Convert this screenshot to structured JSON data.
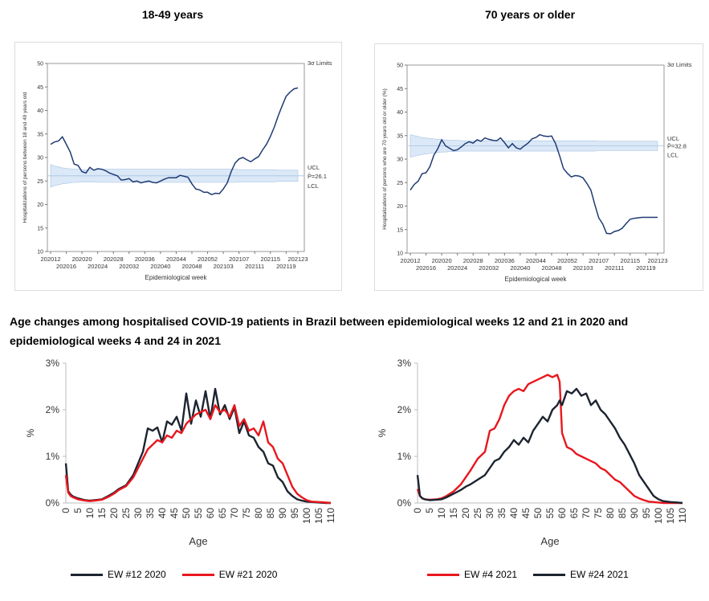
{
  "top_titles": [
    "18-49 years",
    "70 years or older"
  ],
  "caption": "Age changes among hospitalised COVID-19 patients in Brazil between epidemiological weeks 12 and 21 in 2020 and epidemiological weeks 4 and 24 in 2021",
  "colors": {
    "navy": "#1f3b73",
    "band": "#dbe8f7",
    "band_edge": "#a9c3e3",
    "red": "#e8171e",
    "dark": "#1d2430"
  },
  "chart_data": [
    {
      "type": "line",
      "title": "18-49 years",
      "xlabel": "Epidemiological week",
      "ylabel": "Hospitalizations of persons between 18 and 49 years old",
      "ylim": [
        10,
        50
      ],
      "yticks": [
        10,
        15,
        20,
        25,
        30,
        35,
        40,
        45,
        50
      ],
      "xticks_top": [
        "202012",
        "202020",
        "202028",
        "202036",
        "202044",
        "202052",
        "202107",
        "202115",
        "202123"
      ],
      "xticks_bottom": [
        "202016",
        "202024",
        "202032",
        "202040",
        "202048",
        "202103",
        "202111",
        "202119"
      ],
      "limits_label": "3σ Limits",
      "control_labels": [
        "UCL",
        "P̄=26.1",
        "LCL"
      ],
      "center": 26.1,
      "x": [
        0,
        1,
        2,
        3,
        4,
        5,
        6,
        7,
        8,
        9,
        10,
        11,
        12,
        13,
        14,
        15,
        16,
        17,
        18,
        19,
        20,
        21,
        22,
        23,
        24,
        25,
        26,
        27,
        28,
        29,
        30,
        31,
        32,
        33,
        34,
        35,
        36,
        37,
        38,
        39,
        40,
        41,
        42,
        43,
        44,
        45,
        46,
        47,
        48,
        49,
        50,
        51,
        52,
        53,
        54,
        55,
        56,
        57,
        58,
        59,
        60,
        61,
        62,
        63
      ],
      "values": [
        32.8,
        33.3,
        33.5,
        34.4,
        32.8,
        31.2,
        28.6,
        28.3,
        27.0,
        26.7,
        27.9,
        27.3,
        27.6,
        27.5,
        27.2,
        26.7,
        26.4,
        26.1,
        25.2,
        25.3,
        25.5,
        24.8,
        25.0,
        24.6,
        24.8,
        25.0,
        24.7,
        24.6,
        25.0,
        25.4,
        25.7,
        25.7,
        25.7,
        26.2,
        26.0,
        25.8,
        24.4,
        23.3,
        23.1,
        22.6,
        22.6,
        22.1,
        22.4,
        22.3,
        23.3,
        24.6,
        27.0,
        28.8,
        29.7,
        30.0,
        29.5,
        29.1,
        29.7,
        30.2,
        31.6,
        32.8,
        34.5,
        36.5,
        38.9,
        41.0,
        43.0,
        43.9,
        44.6,
        44.8
      ],
      "band_upper": [
        28.5,
        28.2,
        28.0,
        27.8,
        27.7,
        27.6,
        27.5,
        27.5,
        27.4,
        27.4,
        27.4,
        27.4,
        27.5,
        27.5,
        27.5,
        27.5,
        27.5,
        27.5,
        27.5,
        27.5,
        27.5,
        27.5,
        27.5,
        27.5,
        27.5,
        27.5,
        27.5,
        27.5,
        27.5,
        27.5,
        27.5,
        27.5,
        27.5,
        27.5,
        27.5,
        27.5,
        27.5,
        27.5,
        27.5,
        27.5,
        27.5,
        27.5,
        27.5,
        27.5,
        27.5,
        27.5,
        27.5,
        27.5,
        27.4,
        27.4,
        27.4,
        27.4,
        27.4,
        27.4,
        27.4,
        27.4,
        27.4,
        27.4,
        27.3,
        27.3,
        27.3,
        27.3,
        27.3,
        27.3
      ],
      "band_lower": [
        23.7,
        24.0,
        24.2,
        24.4,
        24.5,
        24.6,
        24.7,
        24.7,
        24.8,
        24.8,
        24.8,
        24.8,
        24.7,
        24.7,
        24.7,
        24.7,
        24.7,
        24.7,
        24.7,
        24.7,
        24.7,
        24.7,
        24.7,
        24.7,
        24.7,
        24.7,
        24.7,
        24.7,
        24.7,
        24.7,
        24.7,
        24.7,
        24.7,
        24.7,
        24.7,
        24.7,
        24.7,
        24.7,
        24.7,
        24.7,
        24.7,
        24.7,
        24.7,
        24.7,
        24.7,
        24.7,
        24.7,
        24.7,
        24.8,
        24.8,
        24.8,
        24.8,
        24.8,
        24.8,
        24.8,
        24.8,
        24.8,
        24.8,
        24.9,
        24.9,
        24.9,
        24.9,
        24.9,
        24.9
      ]
    },
    {
      "type": "line",
      "title": "70 years or older",
      "xlabel": "Epidemiological week",
      "ylabel": "Hospitalizations of persons who are 70 years old or older (%)",
      "ylim": [
        10,
        50
      ],
      "yticks": [
        10,
        15,
        20,
        25,
        30,
        35,
        40,
        45,
        50
      ],
      "xticks_top": [
        "202012",
        "202020",
        "202028",
        "202036",
        "202044",
        "202052",
        "202107",
        "202115",
        "202123"
      ],
      "xticks_bottom": [
        "202016",
        "202024",
        "202032",
        "202040",
        "202048",
        "202103",
        "202111",
        "202119"
      ],
      "limits_label": "3σ Limits",
      "control_labels": [
        "UCL",
        "P̄=32.8",
        "LCL"
      ],
      "center": 32.8,
      "x": [
        0,
        1,
        2,
        3,
        4,
        5,
        6,
        7,
        8,
        9,
        10,
        11,
        12,
        13,
        14,
        15,
        16,
        17,
        18,
        19,
        20,
        21,
        22,
        23,
        24,
        25,
        26,
        27,
        28,
        29,
        30,
        31,
        32,
        33,
        34,
        35,
        36,
        37,
        38,
        39,
        40,
        41,
        42,
        43,
        44,
        45,
        46,
        47,
        48,
        49,
        50,
        51,
        52,
        53,
        54,
        55,
        56,
        57,
        58,
        59,
        60,
        61,
        62,
        63
      ],
      "values": [
        23.4,
        24.6,
        25.3,
        26.9,
        27.1,
        28.4,
        30.8,
        32.2,
        34.1,
        32.8,
        32.3,
        31.8,
        32.0,
        32.6,
        33.3,
        33.7,
        33.4,
        34.1,
        33.8,
        34.5,
        34.2,
        34.0,
        33.9,
        34.5,
        33.5,
        32.4,
        33.3,
        32.4,
        32.1,
        32.8,
        33.4,
        34.3,
        34.6,
        35.2,
        34.9,
        34.8,
        34.9,
        33.3,
        30.8,
        28.0,
        27.0,
        26.2,
        26.5,
        26.4,
        26.0,
        24.8,
        23.4,
        20.3,
        17.5,
        16.2,
        14.2,
        14.1,
        14.6,
        14.8,
        15.3,
        16.3,
        17.2,
        17.4,
        17.5,
        17.6,
        17.6,
        17.6,
        17.6,
        17.6
      ],
      "band_upper": [
        35.2,
        35.0,
        34.8,
        34.6,
        34.5,
        34.4,
        34.3,
        34.2,
        34.1,
        34.1,
        34.0,
        34.0,
        34.0,
        33.9,
        33.9,
        33.9,
        33.9,
        33.9,
        33.9,
        33.9,
        33.9,
        33.9,
        33.9,
        33.9,
        33.9,
        33.9,
        33.9,
        33.9,
        33.9,
        33.9,
        33.9,
        33.9,
        33.9,
        33.9,
        33.9,
        33.9,
        33.9,
        33.9,
        33.9,
        33.9,
        33.9,
        33.9,
        33.9,
        33.9,
        33.9,
        33.9,
        33.9,
        33.9,
        33.8,
        33.8,
        33.8,
        33.8,
        33.8,
        33.8,
        33.8,
        33.8,
        33.8,
        33.8,
        33.8,
        33.8,
        33.8,
        33.8,
        33.8,
        33.8
      ],
      "band_lower": [
        30.4,
        30.6,
        30.8,
        31.0,
        31.1,
        31.2,
        31.3,
        31.4,
        31.5,
        31.5,
        31.6,
        31.6,
        31.6,
        31.7,
        31.7,
        31.7,
        31.7,
        31.7,
        31.7,
        31.7,
        31.7,
        31.7,
        31.7,
        31.7,
        31.7,
        31.7,
        31.7,
        31.7,
        31.7,
        31.7,
        31.7,
        31.7,
        31.7,
        31.7,
        31.7,
        31.7,
        31.7,
        31.7,
        31.7,
        31.7,
        31.7,
        31.7,
        31.7,
        31.7,
        31.7,
        31.7,
        31.7,
        31.7,
        31.8,
        31.8,
        31.8,
        31.8,
        31.8,
        31.8,
        31.8,
        31.8,
        31.8,
        31.8,
        31.8,
        31.8,
        31.8,
        31.8,
        31.8,
        31.8
      ]
    },
    {
      "type": "line",
      "xlabel": "Age",
      "ylabel": "%",
      "ylim": [
        0,
        3
      ],
      "yticks": [
        "0%",
        "1%",
        "2%",
        "3%"
      ],
      "xticks": [
        "0",
        "5",
        "10",
        "15",
        "20",
        "25",
        "30",
        "35",
        "40",
        "45",
        "50",
        "55",
        "60",
        "65",
        "70",
        "75",
        "80",
        "85",
        "90",
        "95",
        "100",
        "105",
        "110"
      ],
      "x": [
        0,
        1,
        2,
        3,
        5,
        8,
        10,
        12,
        15,
        18,
        20,
        22,
        25,
        28,
        30,
        32,
        34,
        36,
        38,
        40,
        42,
        44,
        46,
        48,
        50,
        52,
        54,
        56,
        58,
        60,
        62,
        64,
        66,
        68,
        70,
        72,
        74,
        76,
        78,
        80,
        82,
        84,
        86,
        88,
        90,
        92,
        94,
        96,
        98,
        100,
        102,
        105,
        108,
        110
      ],
      "series": [
        {
          "name": "EW #12 2020",
          "color": "#1d2430",
          "values": [
            0.85,
            0.25,
            0.18,
            0.14,
            0.1,
            0.06,
            0.05,
            0.06,
            0.08,
            0.16,
            0.22,
            0.3,
            0.38,
            0.6,
            0.85,
            1.1,
            1.6,
            1.55,
            1.62,
            1.3,
            1.75,
            1.68,
            1.85,
            1.55,
            2.35,
            1.7,
            2.2,
            1.85,
            2.4,
            1.8,
            2.45,
            1.9,
            2.1,
            1.8,
            2.05,
            1.5,
            1.75,
            1.45,
            1.4,
            1.2,
            1.1,
            0.85,
            0.8,
            0.55,
            0.45,
            0.25,
            0.15,
            0.08,
            0.05,
            0.03,
            0.02,
            0.01,
            0.0,
            0.0
          ]
        },
        {
          "name": "EW #21 2020",
          "color": "#e8171e",
          "values": [
            0.6,
            0.22,
            0.15,
            0.12,
            0.08,
            0.05,
            0.04,
            0.05,
            0.07,
            0.14,
            0.2,
            0.28,
            0.36,
            0.55,
            0.75,
            0.95,
            1.15,
            1.25,
            1.35,
            1.3,
            1.45,
            1.4,
            1.55,
            1.5,
            1.7,
            1.8,
            1.9,
            1.95,
            2.0,
            1.8,
            2.1,
            1.95,
            2.0,
            1.85,
            2.1,
            1.65,
            1.8,
            1.55,
            1.6,
            1.45,
            1.75,
            1.3,
            1.2,
            0.95,
            0.85,
            0.6,
            0.35,
            0.2,
            0.12,
            0.06,
            0.03,
            0.02,
            0.01,
            0.0
          ]
        }
      ]
    },
    {
      "type": "line",
      "xlabel": "Age",
      "ylabel": "%",
      "ylim": [
        0,
        3
      ],
      "yticks": [
        "0%",
        "1%",
        "2%",
        "3%"
      ],
      "xticks": [
        "0",
        "5",
        "10",
        "15",
        "20",
        "25",
        "30",
        "35",
        "40",
        "45",
        "50",
        "55",
        "60",
        "65",
        "70",
        "75",
        "80",
        "85",
        "90",
        "95",
        "100",
        "105",
        "110"
      ],
      "x": [
        0,
        1,
        2,
        3,
        5,
        8,
        10,
        12,
        15,
        18,
        20,
        22,
        25,
        28,
        30,
        32,
        34,
        36,
        38,
        40,
        42,
        44,
        46,
        48,
        50,
        52,
        54,
        56,
        58,
        59,
        60,
        62,
        64,
        66,
        68,
        70,
        72,
        74,
        76,
        78,
        80,
        82,
        84,
        86,
        88,
        90,
        92,
        94,
        96,
        98,
        100,
        102,
        105,
        108,
        110
      ],
      "series": [
        {
          "name": "EW #4 2021",
          "color": "#e8171e",
          "values": [
            0.3,
            0.15,
            0.1,
            0.08,
            0.07,
            0.08,
            0.1,
            0.15,
            0.25,
            0.4,
            0.55,
            0.7,
            0.95,
            1.1,
            1.55,
            1.6,
            1.8,
            2.1,
            2.3,
            2.4,
            2.45,
            2.4,
            2.55,
            2.6,
            2.65,
            2.7,
            2.75,
            2.7,
            2.75,
            2.6,
            1.5,
            1.2,
            1.15,
            1.05,
            1.0,
            0.95,
            0.9,
            0.85,
            0.75,
            0.7,
            0.6,
            0.5,
            0.45,
            0.35,
            0.25,
            0.15,
            0.1,
            0.06,
            0.03,
            0.02,
            0.01,
            0.0,
            0.0,
            0.0,
            0.0
          ]
        },
        {
          "name": "EW #24 2021",
          "color": "#1d2430",
          "values": [
            0.6,
            0.15,
            0.1,
            0.08,
            0.06,
            0.07,
            0.08,
            0.12,
            0.2,
            0.28,
            0.35,
            0.4,
            0.5,
            0.6,
            0.75,
            0.9,
            0.95,
            1.1,
            1.2,
            1.35,
            1.25,
            1.4,
            1.3,
            1.55,
            1.7,
            1.85,
            1.75,
            2.0,
            2.1,
            2.2,
            2.1,
            2.4,
            2.35,
            2.45,
            2.3,
            2.35,
            2.1,
            2.2,
            2.0,
            1.9,
            1.75,
            1.6,
            1.4,
            1.25,
            1.05,
            0.85,
            0.6,
            0.45,
            0.3,
            0.15,
            0.08,
            0.04,
            0.02,
            0.01,
            0.0
          ]
        }
      ]
    }
  ],
  "legends": [
    [
      {
        "label": "EW #12 2020",
        "color": "#1d2430"
      },
      {
        "label": "EW #21 2020",
        "color": "#e8171e"
      }
    ],
    [
      {
        "label": "EW #4 2021",
        "color": "#e8171e"
      },
      {
        "label": "EW #24 2021",
        "color": "#1d2430"
      }
    ]
  ]
}
